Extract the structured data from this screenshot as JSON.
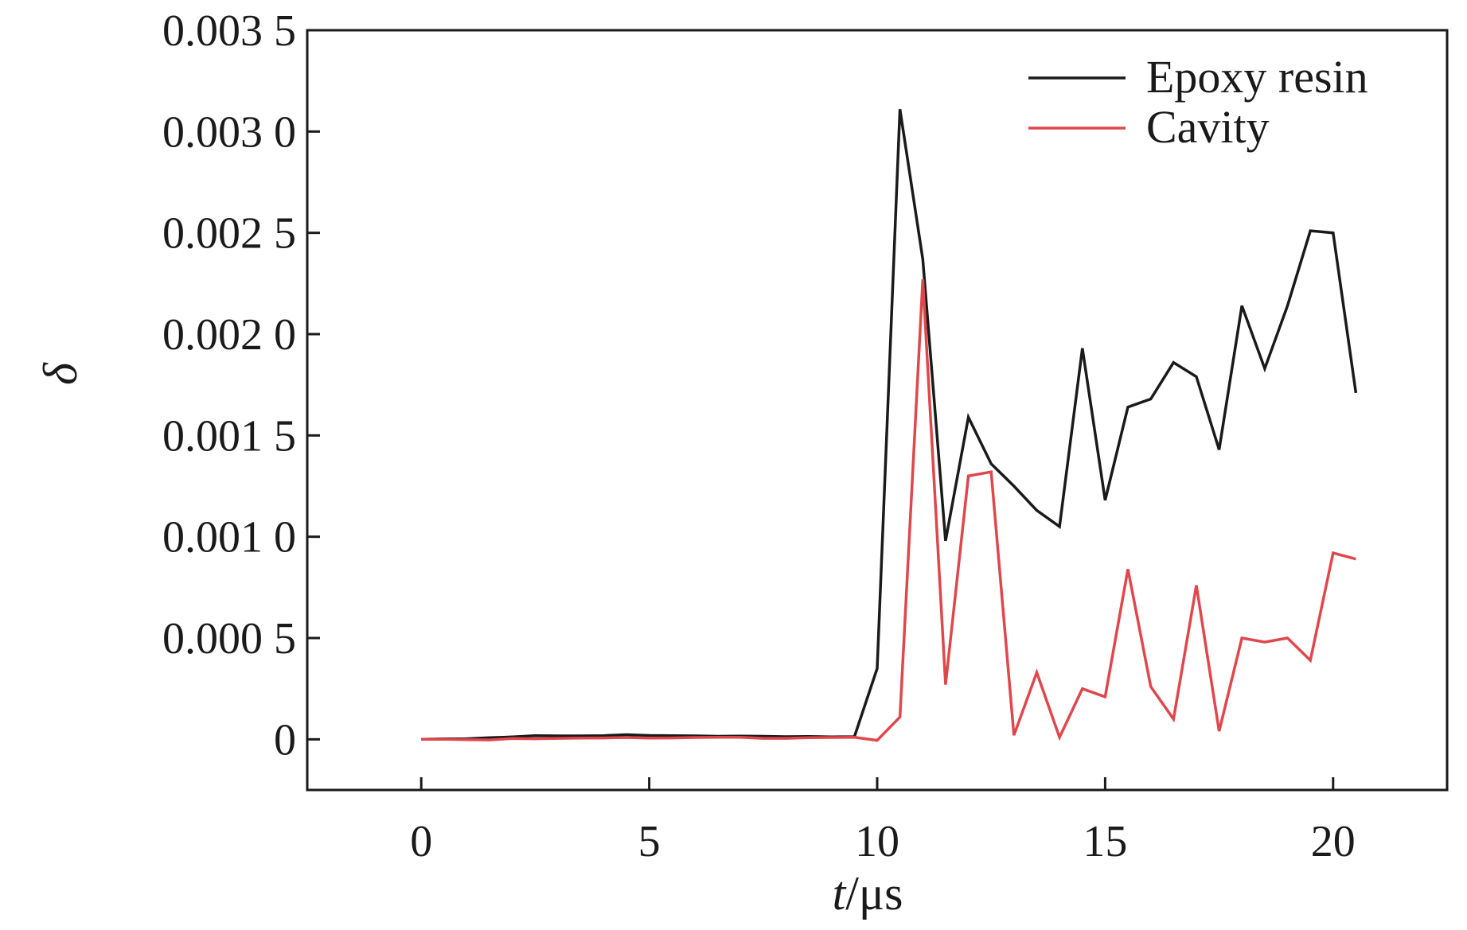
{
  "chart_data": {
    "type": "line",
    "xlabel_var": "t",
    "xlabel_unit": "/μs",
    "ylabel": "δ",
    "xlim": [
      -2.5,
      22.5
    ],
    "ylim": [
      -0.00025,
      0.0035
    ],
    "x_ticks": [
      0,
      5,
      10,
      15,
      20
    ],
    "x_tick_labels": [
      "0",
      "5",
      "10",
      "15",
      "20"
    ],
    "y_ticks": [
      0,
      0.0005,
      0.001,
      0.0015,
      0.002,
      0.0025,
      0.003,
      0.0035
    ],
    "y_tick_labels": [
      "0",
      "0.000 5",
      "0.001 0",
      "0.001 5",
      "0.002 0",
      "0.002 5",
      "0.003 0",
      "0.003 5"
    ],
    "grid": false,
    "legend_position": "top-right",
    "x": [
      0,
      0.5,
      1,
      1.5,
      2,
      2.5,
      3,
      3.5,
      4,
      4.5,
      5,
      5.5,
      6,
      6.5,
      7,
      7.5,
      8,
      8.5,
      9,
      9.5,
      10,
      10.5,
      11,
      11.5,
      12,
      12.5,
      13,
      13.5,
      14,
      14.5,
      15,
      15.5,
      16,
      16.5,
      17,
      17.5,
      18,
      18.5,
      19,
      19.5,
      20,
      20.5
    ],
    "series": [
      {
        "name": "Epoxy resin",
        "color": "#1a1a1a",
        "values": [
          0,
          2e-06,
          3e-06,
          8e-06,
          1.2e-05,
          1.8e-05,
          1.7e-05,
          1.7e-05,
          1.8e-05,
          2.3e-05,
          1.9e-05,
          1.8e-05,
          1.7e-05,
          1.5e-05,
          1.6e-05,
          1.5e-05,
          1.3e-05,
          1.4e-05,
          1.2e-05,
          1.3e-05,
          0.00035,
          0.00311,
          0.00237,
          0.00098,
          0.00159,
          0.00136,
          0.00125,
          0.00113,
          0.00105,
          0.00193,
          0.00118,
          0.00164,
          0.00168,
          0.00186,
          0.00179,
          0.00143,
          0.00214,
          0.00183,
          0.00214,
          0.00251,
          0.0025,
          0.00171
        ]
      },
      {
        "name": "Cavity",
        "color": "#e0474c",
        "values": [
          0,
          0,
          -2e-06,
          -3e-06,
          4e-06,
          3e-06,
          5e-06,
          6e-06,
          7e-06,
          9e-06,
          6e-06,
          7e-06,
          9e-06,
          1e-05,
          1e-05,
          5e-06,
          5e-06,
          8e-06,
          9e-06,
          1e-05,
          -5e-06,
          0.00011,
          0.00227,
          0.00027,
          0.0013,
          0.00132,
          2e-05,
          0.00033,
          1e-05,
          0.00025,
          0.00021,
          0.00084,
          0.00026,
          0.0001,
          0.00076,
          4e-05,
          0.0005,
          0.00048,
          0.0005,
          0.00039,
          0.00092,
          0.00089
        ]
      }
    ]
  }
}
